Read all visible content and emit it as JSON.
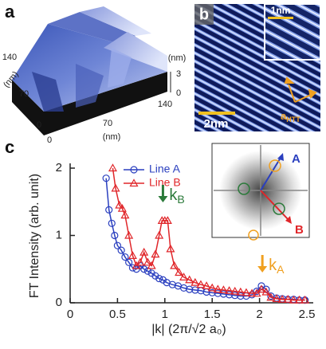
{
  "panels": {
    "a": {
      "label": "a",
      "y_ticks": [
        "140",
        "70",
        "0"
      ],
      "x_ticks": [
        "0",
        "70",
        "140"
      ],
      "y_unit": "(nm)",
      "x_unit": "(nm)",
      "z_ticks": [
        "3",
        "0"
      ],
      "z_unit": "(nm)"
    },
    "b": {
      "label": "b",
      "scale_bar": "2nm",
      "inset_scale_bar": "1nm",
      "vector": {
        "base": "a",
        "sub": "HTT"
      }
    },
    "c": {
      "label": "c",
      "inset_labels": [
        "A",
        "B"
      ]
    }
  },
  "chart_data": {
    "type": "line",
    "xlabel": "|k| (2π/√2 a₀)",
    "ylabel": "FT Intensity (arb. unit)",
    "xlim": [
      0,
      2.5
    ],
    "xticks": [
      0,
      0.5,
      1,
      1.5,
      2,
      2.5
    ],
    "ylim": [
      0,
      2
    ],
    "yticks": [
      0,
      1,
      2
    ],
    "legend": "upper center",
    "series": [
      {
        "name": "Line A",
        "color": "#2a3fbf",
        "marker": "circle",
        "x": [
          0.38,
          0.41,
          0.44,
          0.47,
          0.5,
          0.54,
          0.58,
          0.62,
          0.66,
          0.7,
          0.74,
          0.78,
          0.82,
          0.86,
          0.9,
          0.94,
          0.98,
          1.02,
          1.08,
          1.14,
          1.2,
          1.26,
          1.32,
          1.38,
          1.44,
          1.5,
          1.56,
          1.62,
          1.68,
          1.74,
          1.8,
          1.86,
          1.92,
          1.97,
          2.02,
          2.07,
          2.12,
          2.18,
          2.24,
          2.3,
          2.36,
          2.42,
          2.48
        ],
        "values": [
          1.85,
          1.38,
          1.18,
          1.0,
          0.85,
          0.78,
          0.68,
          0.6,
          0.52,
          0.5,
          0.55,
          0.5,
          0.47,
          0.44,
          0.4,
          0.36,
          0.34,
          0.3,
          0.27,
          0.25,
          0.22,
          0.2,
          0.19,
          0.18,
          0.16,
          0.15,
          0.14,
          0.13,
          0.12,
          0.11,
          0.1,
          0.1,
          0.12,
          0.17,
          0.25,
          0.2,
          0.1,
          0.07,
          0.06,
          0.05,
          0.05,
          0.04,
          0.04
        ]
      },
      {
        "name": "Line B",
        "color": "#e0262a",
        "marker": "triangle",
        "x": [
          0.45,
          0.48,
          0.52,
          0.55,
          0.58,
          0.62,
          0.66,
          0.7,
          0.74,
          0.78,
          0.82,
          0.86,
          0.9,
          0.94,
          0.97,
          1.0,
          1.03,
          1.06,
          1.1,
          1.15,
          1.2,
          1.26,
          1.32,
          1.38,
          1.44,
          1.5,
          1.56,
          1.62,
          1.68,
          1.74,
          1.8,
          1.86,
          1.92,
          1.97,
          2.02,
          2.07,
          2.12,
          2.18,
          2.24,
          2.3,
          2.36,
          2.42,
          2.48
        ],
        "values": [
          2.0,
          1.7,
          1.45,
          1.4,
          1.3,
          1.0,
          0.7,
          0.55,
          0.6,
          0.75,
          0.6,
          0.55,
          0.72,
          1.0,
          1.22,
          1.22,
          1.22,
          0.8,
          0.55,
          0.45,
          0.38,
          0.34,
          0.3,
          0.27,
          0.25,
          0.22,
          0.2,
          0.19,
          0.18,
          0.17,
          0.16,
          0.15,
          0.14,
          0.14,
          0.2,
          0.16,
          0.08,
          0.06,
          0.05,
          0.05,
          0.04,
          0.04,
          0.04
        ]
      }
    ],
    "annotations": [
      {
        "base": "k",
        "sub": "B",
        "x": 0.98,
        "color": "#2b7a3a"
      },
      {
        "base": "k",
        "sub": "A",
        "x": 2.03,
        "color": "#f0a020"
      }
    ]
  }
}
